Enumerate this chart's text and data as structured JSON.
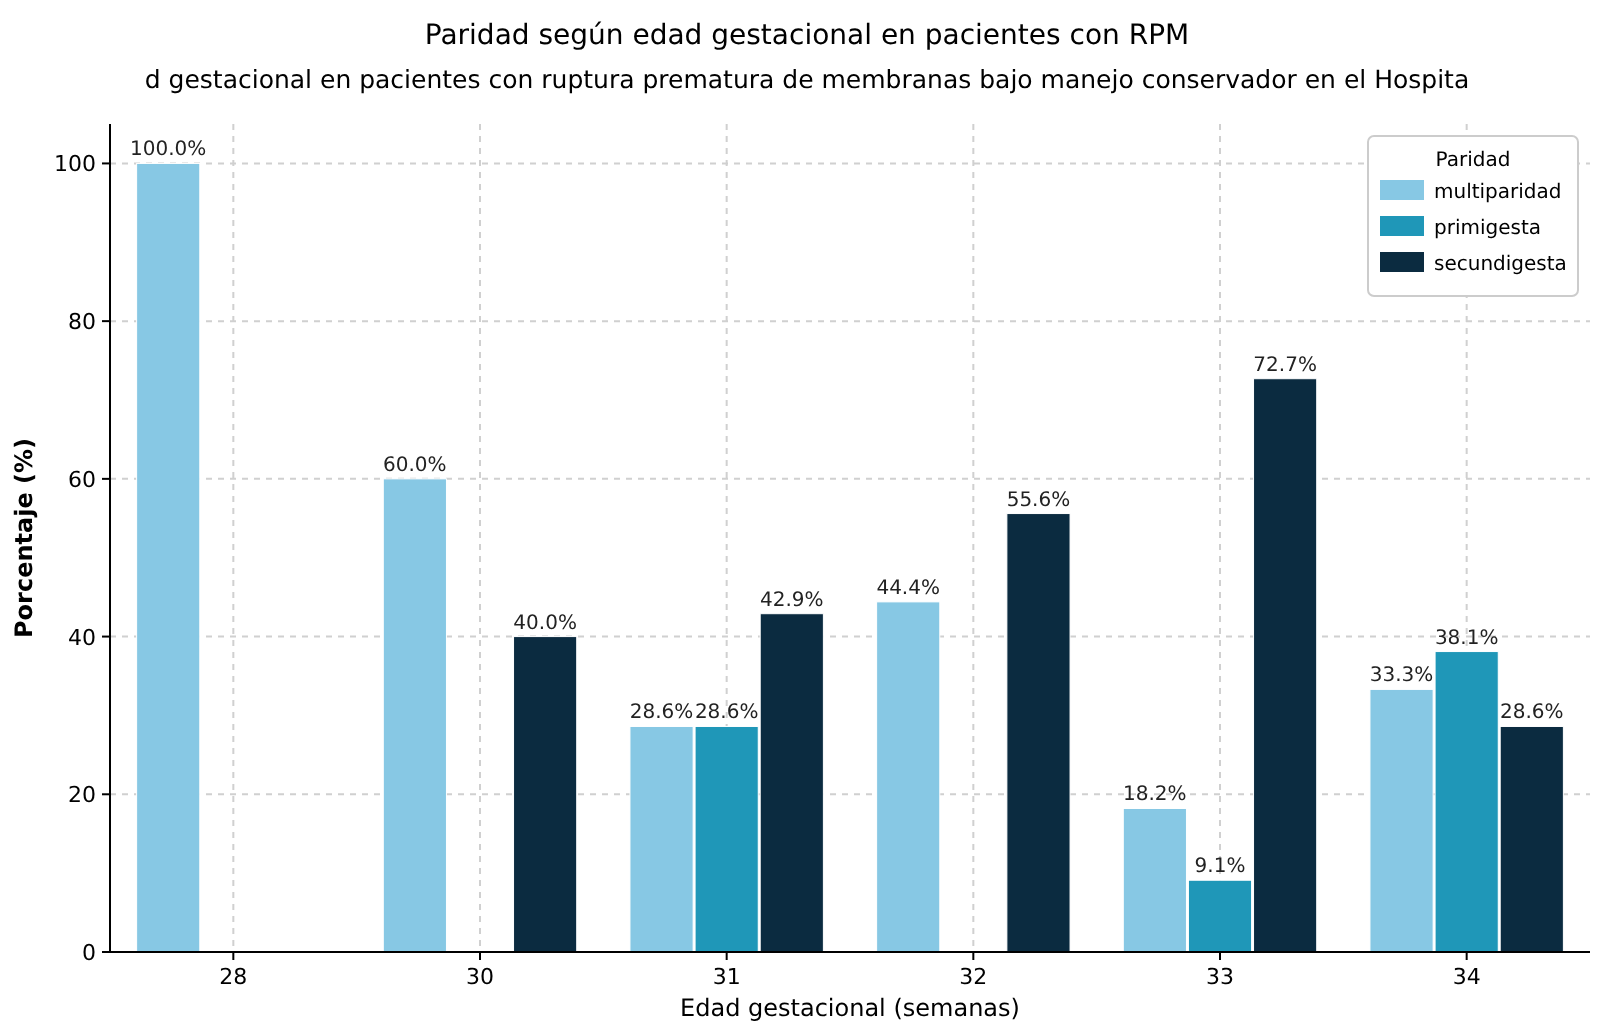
{
  "chart_data": {
    "type": "bar",
    "title": "Paridad según edad gestacional en pacientes con RPM",
    "subtitle": "d gestacional en pacientes con ruptura prematura de membranas bajo manejo conservador en el Hospita",
    "xlabel": "Edad gestacional (semanas)",
    "ylabel": "Porcentaje (%)",
    "legend_title": "Paridad",
    "categories": [
      "28",
      "30",
      "31",
      "32",
      "33",
      "34"
    ],
    "series": [
      {
        "name": "multiparidad",
        "color": "#87c8e4",
        "values": [
          100,
          60,
          28.6,
          44.4,
          18.2,
          33.3
        ],
        "value_labels": [
          "100.0%",
          "60.0%",
          "28.6%",
          "44.4%",
          "18.2%",
          "33.3%"
        ]
      },
      {
        "name": "primigesta",
        "color": "#1f97b8",
        "values": [
          null,
          null,
          28.6,
          null,
          9.1,
          38.1
        ],
        "value_labels": [
          null,
          null,
          "28.6%",
          null,
          "9.1%",
          "38.1%"
        ]
      },
      {
        "name": "secundigesta",
        "color": "#0b2b40",
        "values": [
          null,
          40,
          42.9,
          55.6,
          72.7,
          28.6
        ],
        "value_labels": [
          null,
          "40.0%",
          "42.9%",
          "55.6%",
          "72.7%",
          "28.6%"
        ]
      }
    ],
    "ylim": [
      0,
      105
    ],
    "yticks": [
      0,
      20,
      40,
      60,
      80,
      100
    ],
    "grid": true,
    "legend": "top right"
  }
}
